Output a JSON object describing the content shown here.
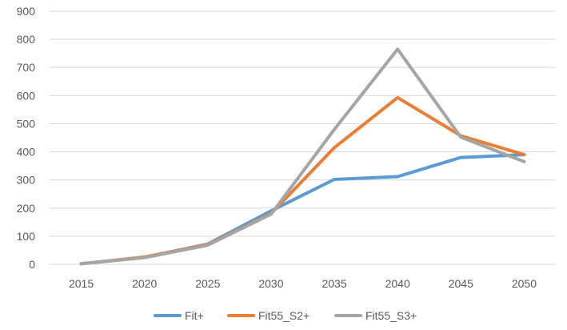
{
  "chart_data": {
    "type": "line",
    "title": "",
    "xlabel": "",
    "ylabel": "",
    "x": [
      "2015",
      "2020",
      "2025",
      "2030",
      "2035",
      "2040",
      "2045",
      "2050"
    ],
    "ylim": [
      0,
      900
    ],
    "yticks": [
      0,
      100,
      200,
      300,
      400,
      500,
      600,
      700,
      800,
      900
    ],
    "grid": true,
    "legend_position": "bottom",
    "series": [
      {
        "name": "Fit+",
        "color": "#5b9bd5",
        "values": [
          2,
          25,
          72,
          190,
          302,
          312,
          380,
          390
        ]
      },
      {
        "name": "Fit55_S2+",
        "color": "#ed7d31",
        "values": [
          2,
          26,
          70,
          180,
          415,
          593,
          457,
          390
        ]
      },
      {
        "name": "Fit55_S3+",
        "color": "#a5a5a5",
        "values": [
          2,
          24,
          68,
          178,
          480,
          765,
          452,
          365
        ]
      }
    ]
  }
}
